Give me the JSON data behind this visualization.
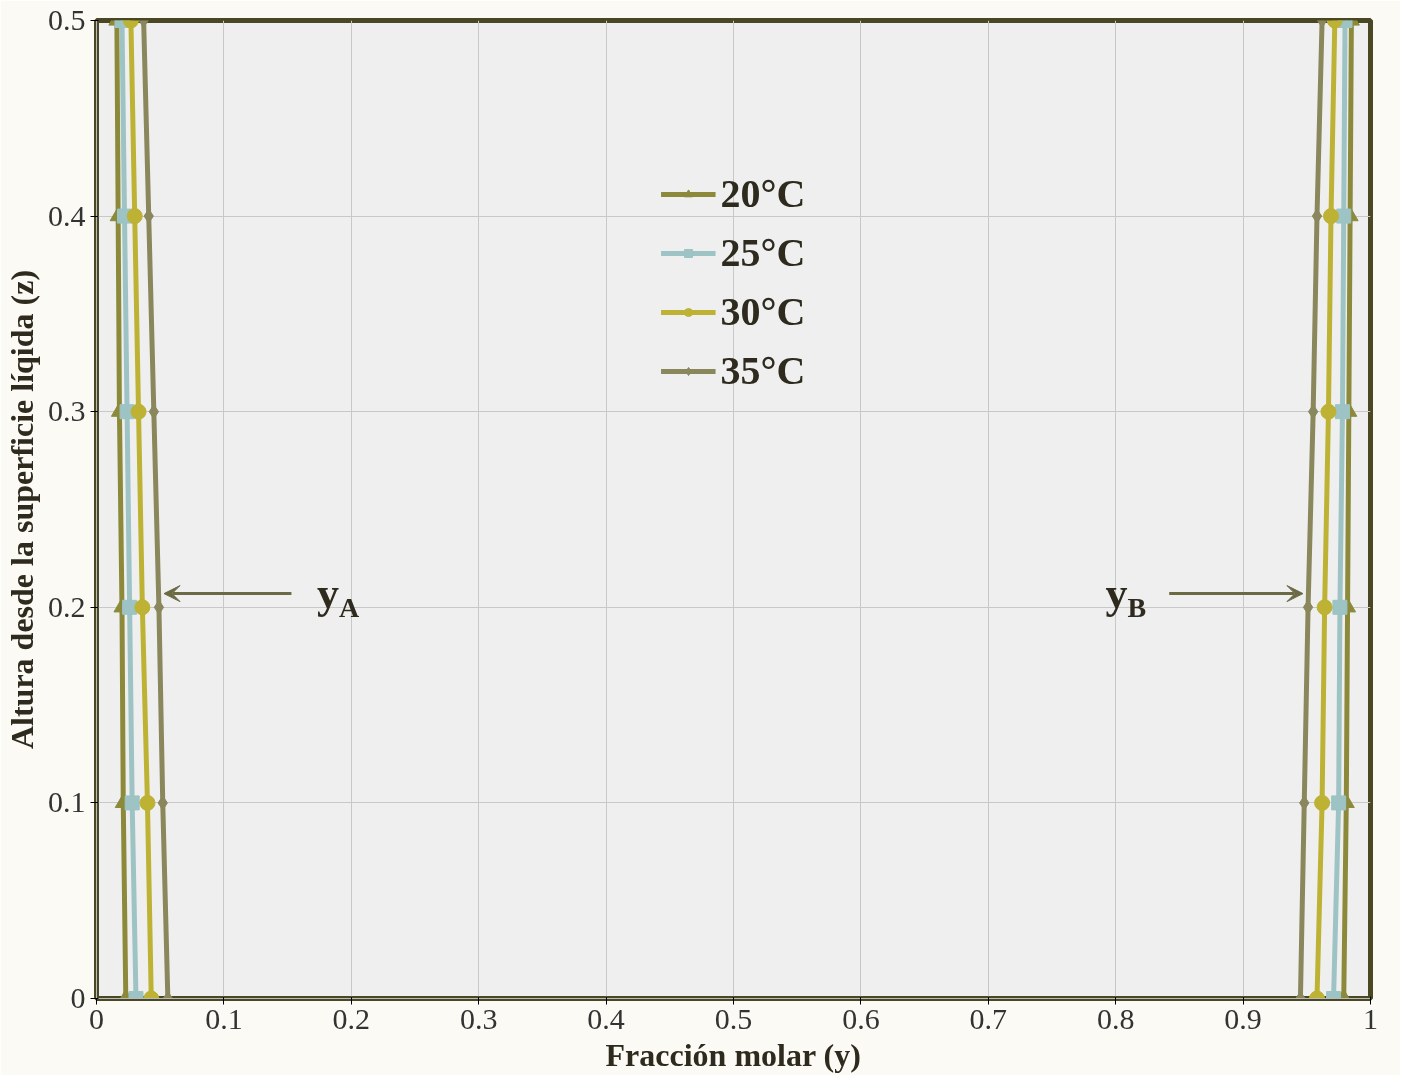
{
  "chart_data": {
    "type": "line",
    "xlabel": "Fracción molar (y)",
    "ylabel": "Altura desde la superficie líqida (z)",
    "xlim": [
      0,
      1
    ],
    "xticks": [
      0,
      0.1,
      0.2,
      0.3,
      0.4,
      0.5,
      0.6,
      0.7,
      0.8,
      0.9,
      1
    ],
    "ylim": [
      0,
      0.5
    ],
    "yticks": [
      0,
      0.1,
      0.2,
      0.3,
      0.4,
      0.5
    ],
    "grid": true,
    "legend": "top",
    "line_style": "solid",
    "series": [
      {
        "name": "20°C",
        "color": "#8c8a3a",
        "marker": "triangle",
        "x": [
          0.023,
          0.021,
          0.02,
          0.018,
          0.017,
          0.016
        ],
        "values": [
          0,
          0.1,
          0.2,
          0.3,
          0.4,
          0.5
        ]
      },
      {
        "name": "25°C",
        "color": "#9dc3c4",
        "marker": "square",
        "x": [
          0.031,
          0.028,
          0.026,
          0.024,
          0.022,
          0.02
        ],
        "values": [
          0,
          0.1,
          0.2,
          0.3,
          0.4,
          0.5
        ]
      },
      {
        "name": "30°C",
        "color": "#bdb233",
        "marker": "circle",
        "x": [
          0.043,
          0.04,
          0.036,
          0.033,
          0.03,
          0.027
        ],
        "values": [
          0,
          0.1,
          0.2,
          0.3,
          0.4,
          0.5
        ]
      },
      {
        "name": "35°C",
        "color": "#8a875d",
        "marker": "diamond",
        "x": [
          0.056,
          0.052,
          0.049,
          0.045,
          0.041,
          0.037
        ],
        "values": [
          0,
          0.1,
          0.2,
          0.3,
          0.4,
          0.5
        ]
      },
      {
        "color": "#8c8a3a",
        "marker": "triangle",
        "x": [
          0.979,
          0.981,
          0.982,
          0.983,
          0.984,
          0.985
        ],
        "values": [
          0,
          0.1,
          0.2,
          0.3,
          0.4,
          0.5
        ]
      },
      {
        "color": "#9dc3c4",
        "marker": "square",
        "x": [
          0.971,
          0.975,
          0.976,
          0.978,
          0.979,
          0.98
        ],
        "values": [
          0,
          0.1,
          0.2,
          0.3,
          0.4,
          0.5
        ]
      },
      {
        "color": "#bdb233",
        "marker": "circle",
        "x": [
          0.958,
          0.962,
          0.964,
          0.967,
          0.969,
          0.972
        ],
        "values": [
          0,
          0.1,
          0.2,
          0.3,
          0.4,
          0.5
        ]
      },
      {
        "color": "#8a875d",
        "marker": "diamond",
        "x": [
          0.945,
          0.948,
          0.951,
          0.955,
          0.958,
          0.962
        ],
        "values": [
          0,
          0.1,
          0.2,
          0.3,
          0.4,
          0.5
        ]
      }
    ],
    "annotations": [
      {
        "text": "y$_{A}$",
        "x": 0.053,
        "y": 0.207
      },
      {
        "text": "y$_{B}$",
        "x": 0.947,
        "y": 0.207
      }
    ]
  }
}
